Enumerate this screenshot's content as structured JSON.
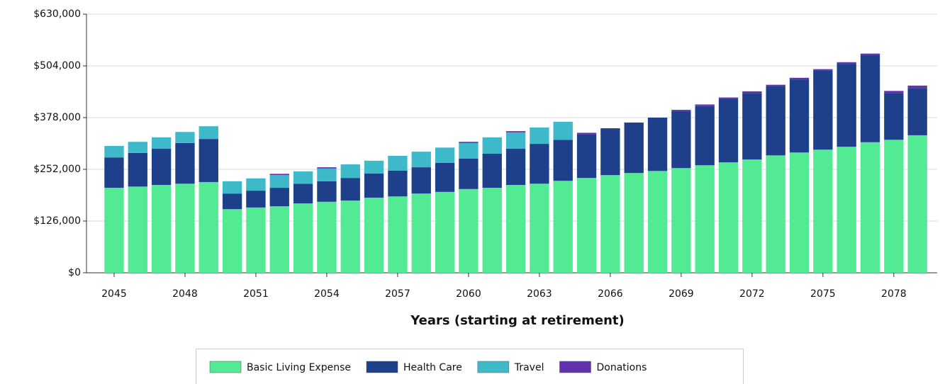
{
  "chart_data": {
    "type": "stacked_bar",
    "x_label": "Years (starting at retirement)",
    "categories": [
      "2045",
      null,
      null,
      "2048",
      null,
      null,
      "2051",
      null,
      null,
      "2054",
      null,
      null,
      "2057",
      null,
      null,
      "2060",
      null,
      null,
      "2063",
      null,
      null,
      "2066",
      null,
      null,
      "2069",
      null,
      null,
      "2072",
      null,
      null,
      "2075",
      null,
      null,
      "2078",
      null
    ],
    "series": [
      {
        "name": "Basic Living Expense",
        "color": "#52ea92",
        "values": [
          207000,
          210000,
          214000,
          217000,
          221000,
          155000,
          159000,
          162000,
          169000,
          173000,
          176000,
          183000,
          186000,
          193000,
          197000,
          204000,
          207000,
          214000,
          217000,
          224000,
          231000,
          238000,
          243000,
          248000,
          255000,
          262000,
          269000,
          276000,
          286000,
          293000,
          300000,
          307000,
          318000,
          324000,
          335000
        ]
      },
      {
        "name": "Health Care",
        "color": "#1e3f8a",
        "values": [
          74000,
          82000,
          88000,
          99000,
          105000,
          38000,
          41000,
          45000,
          48000,
          50000,
          55000,
          59000,
          63000,
          64000,
          71000,
          74000,
          83000,
          88000,
          97000,
          100000,
          107000,
          114000,
          123000,
          130000,
          139000,
          144000,
          154000,
          162000,
          168000,
          178000,
          192000,
          202000,
          212000,
          114000,
          115000
        ]
      },
      {
        "name": "Travel",
        "color": "#3eb9c9",
        "values": [
          28000,
          27000,
          28000,
          27000,
          31000,
          30000,
          30000,
          31000,
          30000,
          31000,
          33000,
          31000,
          36000,
          38000,
          37000,
          38000,
          40000,
          40000,
          40000,
          44000,
          0,
          0,
          0,
          0,
          0,
          0,
          0,
          0,
          0,
          0,
          0,
          0,
          0,
          0,
          0
        ]
      },
      {
        "name": "Donations",
        "color": "#6231b0",
        "values": [
          0,
          0,
          0,
          0,
          0,
          0,
          0,
          3000,
          0,
          3000,
          0,
          0,
          0,
          0,
          0,
          3000,
          0,
          3000,
          0,
          0,
          3000,
          0,
          0,
          0,
          3000,
          4000,
          4000,
          4000,
          4000,
          4000,
          4000,
          4000,
          4000,
          5000,
          6000
        ]
      }
    ],
    "ylim": [
      0,
      630000
    ],
    "yticks": [
      {
        "value": 0,
        "label": "$0"
      },
      {
        "value": 126000,
        "label": "$126,000"
      },
      {
        "value": 252000,
        "label": "$252,000"
      },
      {
        "value": 378000,
        "label": "$378,000"
      },
      {
        "value": 504000,
        "label": "$504,000"
      },
      {
        "value": 630000,
        "label": "$630,000"
      }
    ],
    "grid": true
  }
}
